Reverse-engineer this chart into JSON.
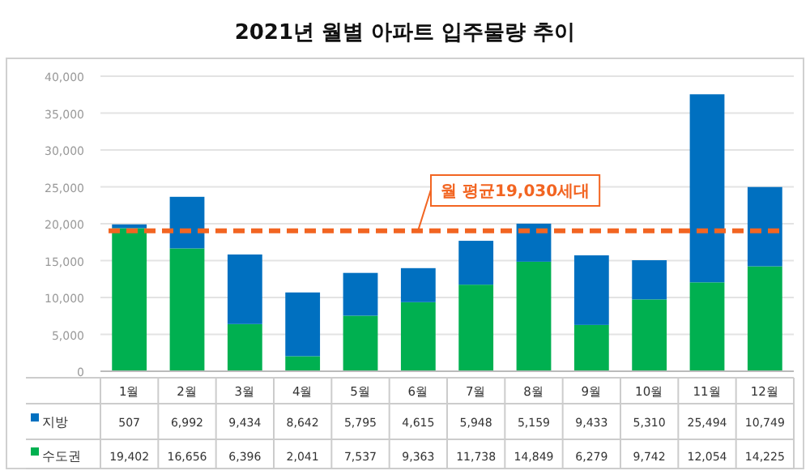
{
  "chart_data": {
    "type": "bar",
    "title": "2021년 월별 아파트 입주물량 추이",
    "stacked": true,
    "categories": [
      "1월",
      "2월",
      "3월",
      "4월",
      "5월",
      "6월",
      "7월",
      "8월",
      "9월",
      "10월",
      "11월",
      "12월"
    ],
    "series": [
      {
        "name": "수도권",
        "color": "#00b050",
        "values": [
          19402,
          16656,
          6396,
          2041,
          7537,
          9363,
          11738,
          14849,
          6279,
          9742,
          12054,
          14225
        ],
        "value_labels": [
          "19,402",
          "16,656",
          "6,396",
          "2,041",
          "7,537",
          "9,363",
          "11,738",
          "14,849",
          "6,279",
          "9,742",
          "12,054",
          "14,225"
        ]
      },
      {
        "name": "지방",
        "color": "#0070c0",
        "values": [
          507,
          6992,
          9434,
          8642,
          5795,
          4615,
          5948,
          5159,
          9433,
          5310,
          25494,
          10749
        ],
        "value_labels": [
          "507",
          "6,992",
          "9,434",
          "8,642",
          "5,795",
          "4,615",
          "5,948",
          "5,159",
          "9,433",
          "5,310",
          "25,494",
          "10,749"
        ]
      }
    ],
    "ylim": [
      0,
      40000
    ],
    "yticks": [
      {
        "value": 0,
        "label": "0"
      },
      {
        "value": 5000,
        "label": "5,000"
      },
      {
        "value": 10000,
        "label": "10,000"
      },
      {
        "value": 15000,
        "label": "15,000"
      },
      {
        "value": 20000,
        "label": "20,000"
      },
      {
        "value": 25000,
        "label": "25,000"
      },
      {
        "value": 30000,
        "label": "30,000"
      },
      {
        "value": 35000,
        "label": "35,000"
      },
      {
        "value": 40000,
        "label": "40,000"
      }
    ],
    "grid": "y",
    "legend": "bottom",
    "ref_lines": [
      {
        "axis": "y",
        "value": 19030,
        "label": "월 평균19,030세대",
        "color": "#f26522",
        "line_style": "dashed"
      }
    ]
  }
}
